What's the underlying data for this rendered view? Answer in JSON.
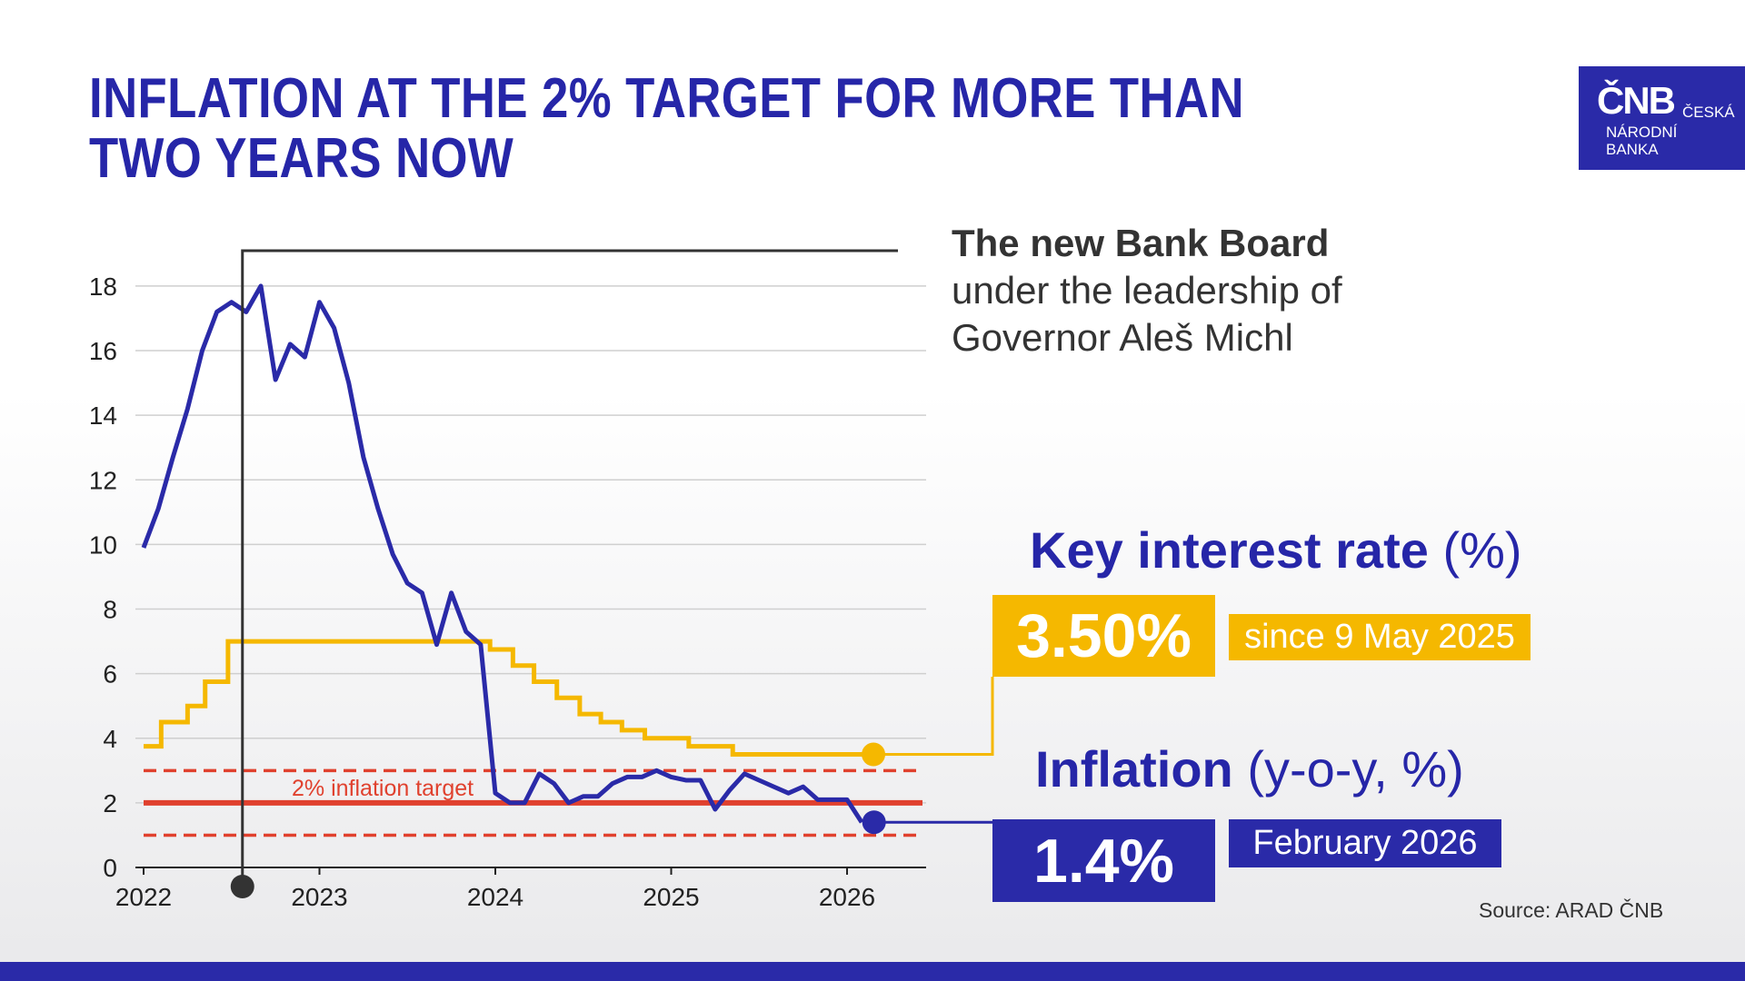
{
  "title": {
    "line1": "INFLATION AT THE 2% TARGET FOR MORE THAN",
    "line2": "TWO YEARS NOW"
  },
  "logo": {
    "mark": "ČNB",
    "line1": "ČESKÁ",
    "line2": "NÁRODNÍ",
    "line3": "BANKA"
  },
  "annotation": {
    "bold": "The new Bank Board",
    "line2": "under the leadership of",
    "line3": "Governor Aleš Michl"
  },
  "key_rate": {
    "label": "Key interest rate",
    "unit": "(%)",
    "value": "3.50%",
    "since": "since 9 May 2025"
  },
  "inflation": {
    "label": "Inflation",
    "unit": "(y-o-y, %)",
    "value": "1.4%",
    "period": "February 2026"
  },
  "source": "Source: ARAD ČNB",
  "colors": {
    "inflation": "#2a2aa8",
    "key_rate": "#f5b800",
    "target": "#e0412e",
    "board_marker": "#333333"
  },
  "chart_data": {
    "type": "line",
    "ylim": [
      0,
      19
    ],
    "yticks": [
      "0",
      "2",
      "4",
      "6",
      "8",
      "10",
      "12",
      "14",
      "16",
      "18"
    ],
    "xticks": [
      "2022",
      "2023",
      "2024",
      "2025",
      "2026"
    ],
    "grid": true,
    "target_label": "2% inflation target",
    "target": 2,
    "tolerance_band": [
      1,
      3
    ],
    "board_start": 2022.5,
    "series": [
      {
        "key": "inflation",
        "monthly_from": "2022-01",
        "values": [
          9.9,
          11.1,
          12.7,
          14.2,
          16.0,
          17.2,
          17.5,
          17.2,
          18.0,
          15.1,
          16.2,
          15.8,
          17.5,
          16.7,
          15.0,
          12.7,
          11.1,
          9.7,
          8.8,
          8.5,
          6.9,
          8.5,
          7.3,
          6.9,
          2.3,
          2.0,
          2.0,
          2.9,
          2.6,
          2.0,
          2.2,
          2.2,
          2.6,
          2.8,
          2.8,
          3.0,
          2.8,
          2.7,
          2.7,
          1.8,
          2.4,
          2.9,
          2.7,
          2.5,
          2.3,
          2.5,
          2.1,
          2.1,
          2.1,
          1.4
        ]
      },
      {
        "key": "key_rate",
        "step": true,
        "points": [
          [
            2022.0,
            3.75
          ],
          [
            2022.1,
            4.5
          ],
          [
            2022.25,
            5.0
          ],
          [
            2022.35,
            5.75
          ],
          [
            2022.48,
            7.0
          ],
          [
            2023.97,
            6.75
          ],
          [
            2024.1,
            6.25
          ],
          [
            2024.22,
            5.75
          ],
          [
            2024.35,
            5.25
          ],
          [
            2024.48,
            4.75
          ],
          [
            2024.6,
            4.5
          ],
          [
            2024.72,
            4.25
          ],
          [
            2024.85,
            4.0
          ],
          [
            2025.1,
            3.75
          ],
          [
            2025.35,
            3.5
          ],
          [
            2026.15,
            3.5
          ]
        ]
      }
    ]
  }
}
